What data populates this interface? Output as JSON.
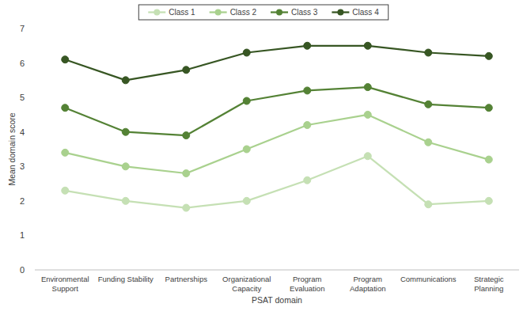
{
  "chart_data": {
    "type": "line",
    "x_label": "PSAT domain",
    "y_label": "Mean domain score",
    "categories": [
      "Environmental Support",
      "Funding Stability",
      "Partnerships",
      "Organizational Capacity",
      "Program Evaluation",
      "Program Adaptation",
      "Communications",
      "Strategic Planning"
    ],
    "series": [
      {
        "name": "Class 1",
        "color": "#c5e0b4",
        "values": [
          2.3,
          2.0,
          1.8,
          2.0,
          2.6,
          3.3,
          1.9,
          2.0
        ]
      },
      {
        "name": "Class 2",
        "color": "#a9d18e",
        "values": [
          3.4,
          3.0,
          2.8,
          3.5,
          4.2,
          4.5,
          3.7,
          3.2
        ]
      },
      {
        "name": "Class 3",
        "color": "#548235",
        "values": [
          4.7,
          4.0,
          3.9,
          4.9,
          5.2,
          5.3,
          4.8,
          4.7
        ]
      },
      {
        "name": "Class 4",
        "color": "#375623",
        "values": [
          6.1,
          5.5,
          5.8,
          6.3,
          6.5,
          6.5,
          6.3,
          6.2
        ]
      }
    ],
    "ylim": [
      0,
      7
    ],
    "yticks": [
      0,
      1,
      2,
      3,
      4,
      5,
      6,
      7
    ],
    "grid": false,
    "legend": "top",
    "marker": "circle"
  }
}
